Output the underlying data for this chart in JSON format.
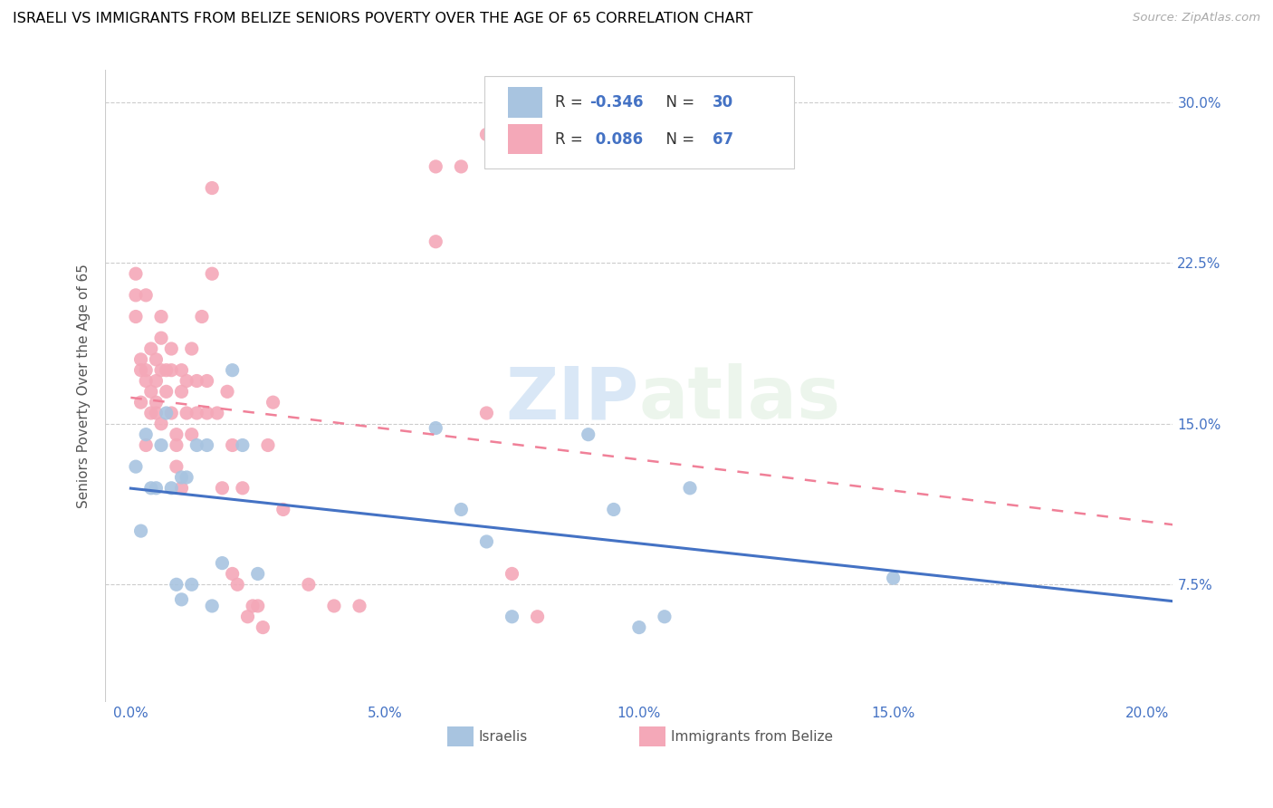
{
  "title": "ISRAELI VS IMMIGRANTS FROM BELIZE SENIORS POVERTY OVER THE AGE OF 65 CORRELATION CHART",
  "source": "Source: ZipAtlas.com",
  "ylabel": "Seniors Poverty Over the Age of 65",
  "xlabel_ticks": [
    "0.0%",
    "5.0%",
    "10.0%",
    "15.0%",
    "20.0%"
  ],
  "xlabel_vals": [
    0.0,
    0.05,
    0.1,
    0.15,
    0.2
  ],
  "ylabel_ticks": [
    "7.5%",
    "15.0%",
    "22.5%",
    "30.0%"
  ],
  "ylabel_vals": [
    0.075,
    0.15,
    0.225,
    0.3
  ],
  "xlim": [
    -0.005,
    0.205
  ],
  "ylim": [
    0.02,
    0.315
  ],
  "israeli_color": "#a8c4e0",
  "belize_color": "#f4a8b8",
  "israeli_R": -0.346,
  "israeli_N": 30,
  "belize_R": 0.086,
  "belize_N": 67,
  "legend_text_color": "#4472c4",
  "israeli_x": [
    0.001,
    0.002,
    0.003,
    0.004,
    0.005,
    0.006,
    0.007,
    0.008,
    0.009,
    0.01,
    0.01,
    0.011,
    0.012,
    0.013,
    0.015,
    0.016,
    0.018,
    0.02,
    0.022,
    0.025,
    0.06,
    0.065,
    0.07,
    0.075,
    0.09,
    0.095,
    0.1,
    0.105,
    0.11,
    0.15
  ],
  "israeli_y": [
    0.13,
    0.1,
    0.145,
    0.12,
    0.12,
    0.14,
    0.155,
    0.12,
    0.075,
    0.068,
    0.125,
    0.125,
    0.075,
    0.14,
    0.14,
    0.065,
    0.085,
    0.175,
    0.14,
    0.08,
    0.148,
    0.11,
    0.095,
    0.06,
    0.145,
    0.11,
    0.055,
    0.06,
    0.12,
    0.078
  ],
  "belize_x": [
    0.001,
    0.001,
    0.001,
    0.002,
    0.002,
    0.002,
    0.003,
    0.003,
    0.003,
    0.003,
    0.004,
    0.004,
    0.004,
    0.005,
    0.005,
    0.005,
    0.005,
    0.006,
    0.006,
    0.006,
    0.006,
    0.007,
    0.007,
    0.008,
    0.008,
    0.008,
    0.009,
    0.009,
    0.009,
    0.01,
    0.01,
    0.01,
    0.011,
    0.011,
    0.012,
    0.012,
    0.013,
    0.013,
    0.014,
    0.015,
    0.015,
    0.016,
    0.016,
    0.017,
    0.018,
    0.019,
    0.02,
    0.02,
    0.021,
    0.022,
    0.023,
    0.024,
    0.025,
    0.026,
    0.027,
    0.028,
    0.03,
    0.035,
    0.04,
    0.045,
    0.06,
    0.06,
    0.065,
    0.07,
    0.07,
    0.075,
    0.08
  ],
  "belize_y": [
    0.21,
    0.2,
    0.22,
    0.16,
    0.175,
    0.18,
    0.21,
    0.175,
    0.17,
    0.14,
    0.185,
    0.165,
    0.155,
    0.18,
    0.17,
    0.16,
    0.155,
    0.2,
    0.19,
    0.175,
    0.15,
    0.175,
    0.165,
    0.185,
    0.175,
    0.155,
    0.145,
    0.14,
    0.13,
    0.175,
    0.165,
    0.12,
    0.17,
    0.155,
    0.185,
    0.145,
    0.17,
    0.155,
    0.2,
    0.17,
    0.155,
    0.22,
    0.26,
    0.155,
    0.12,
    0.165,
    0.14,
    0.08,
    0.075,
    0.12,
    0.06,
    0.065,
    0.065,
    0.055,
    0.14,
    0.16,
    0.11,
    0.075,
    0.065,
    0.065,
    0.235,
    0.27,
    0.27,
    0.155,
    0.285,
    0.08,
    0.06
  ]
}
